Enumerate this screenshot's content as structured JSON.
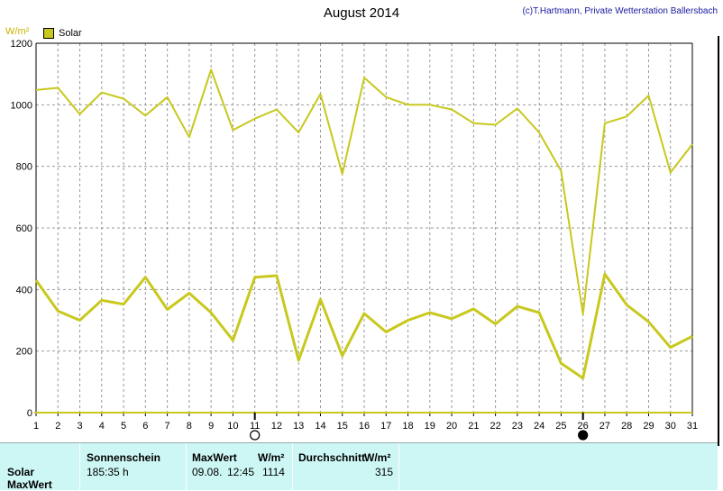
{
  "title": "August 2014",
  "copyright": "(c)T.Hartmann, Private Wetterstation Ballersbach",
  "unit": "W/m²",
  "colors": {
    "series": "#c8c81e",
    "grid": "#999999",
    "axis": "#000000"
  },
  "chart_data": {
    "type": "line",
    "x": [
      1,
      2,
      3,
      4,
      5,
      6,
      7,
      8,
      9,
      10,
      11,
      12,
      13,
      14,
      15,
      16,
      17,
      18,
      19,
      20,
      21,
      22,
      23,
      24,
      25,
      26,
      27,
      28,
      29,
      30,
      31
    ],
    "xlim": [
      1,
      31
    ],
    "ylim": [
      0,
      1200
    ],
    "yticks": [
      0,
      200,
      400,
      600,
      800,
      1000,
      1200
    ],
    "ylabel": "W/m²",
    "grid": true,
    "legend": "top-left",
    "series": [
      {
        "name": "Solar",
        "values": [
          1048,
          1055,
          970,
          1040,
          1020,
          965,
          1025,
          895,
          1114,
          918,
          955,
          985,
          910,
          1035,
          775,
          1088,
          1025,
          1000,
          1000,
          985,
          940,
          935,
          988,
          910,
          785,
          320,
          940,
          962,
          1030,
          780,
          872
        ]
      },
      {
        "name": "",
        "values": [
          430,
          330,
          300,
          365,
          352,
          440,
          335,
          388,
          325,
          235,
          440,
          445,
          170,
          368,
          185,
          322,
          262,
          300,
          325,
          305,
          337,
          288,
          345,
          325,
          160,
          112,
          450,
          350,
          295,
          212,
          248
        ]
      }
    ],
    "markers": [
      {
        "day": 11,
        "symbol": "full-moon-icon"
      },
      {
        "day": 26,
        "symbol": "new-moon-icon"
      }
    ]
  },
  "table": {
    "row_labels": [
      "Solar",
      "MaxWert"
    ],
    "sunshine_header": "Sonnenschein",
    "sunshine_value": "185:35 h",
    "max_header": "MaxWert",
    "max_unit": "W/m²",
    "max_date": "09.08.",
    "max_time": "12:45",
    "max_value": "1114",
    "avg_header": "Durchschnitt",
    "avg_unit": "W/m²",
    "avg_value": "315"
  }
}
